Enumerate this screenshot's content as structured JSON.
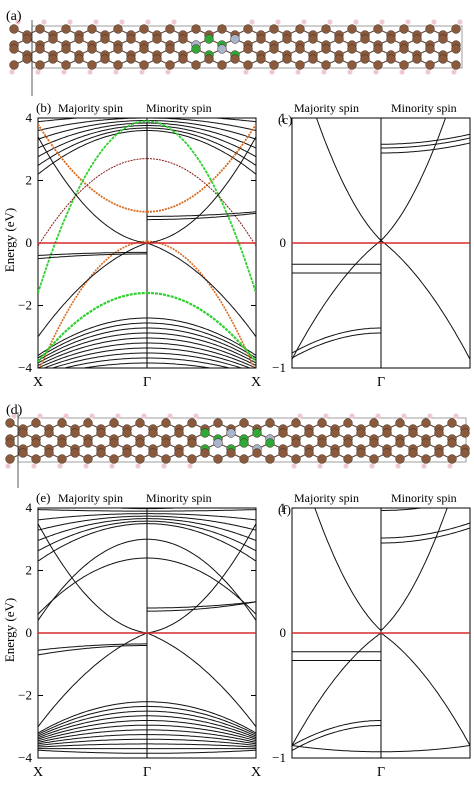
{
  "figure": {
    "panels": {
      "a": {
        "label": "(a)"
      },
      "b": {
        "label": "(b)",
        "majority": "Majority spin",
        "minority": "Minority spin"
      },
      "c": {
        "label": "(c)",
        "majority": "Majority spin",
        "minority": "Minority spin"
      },
      "d": {
        "label": "(d)"
      },
      "e": {
        "label": "(e)",
        "majority": "Majority spin",
        "minority": "Minority spin"
      },
      "f": {
        "label": "(f)",
        "majority": "Majority spin",
        "minority": "Minority spin"
      }
    },
    "y_axis_label": "Energy (eV)",
    "colors": {
      "fermi_line": "#d42b2b",
      "band": "#111111",
      "orange_band": "#d86a1e",
      "green_band": "#2fd02f",
      "carbon": "#8b5a3c",
      "hydrogen": "#f0c9cf",
      "boron_nitrogen_blue": "#aab4cc",
      "boron_green": "#2fa838"
    }
  },
  "chart_data": [
    {
      "panel": "b",
      "type": "line",
      "xlabel_ticks": [
        "X",
        "Γ",
        "X"
      ],
      "ylabel": "Energy (eV)",
      "ylim": [
        -4,
        4
      ],
      "yticks": [
        -4,
        -2,
        0,
        2,
        4
      ],
      "fermi_level": 0,
      "series": [
        {
          "spin": "majority",
          "description": "electron-like bands above 0, hole-like bands below, highlighted orange and green projections",
          "values": "qualitative"
        },
        {
          "spin": "minority",
          "description": "bands mirrored on right side",
          "values": "qualitative"
        }
      ]
    },
    {
      "panel": "c",
      "type": "line",
      "xlabel_ticks": [
        "Γ"
      ],
      "ylim": [
        -1,
        1
      ],
      "yticks": [
        -1,
        0,
        1
      ],
      "fermi_level": 0
    },
    {
      "panel": "e",
      "type": "line",
      "xlabel_ticks": [
        "X",
        "Γ",
        "X"
      ],
      "ylabel": "Energy (eV)",
      "ylim": [
        -4,
        4
      ],
      "yticks": [
        -4,
        -2,
        0,
        2,
        4
      ],
      "fermi_level": 0
    },
    {
      "panel": "f",
      "type": "line",
      "xlabel_ticks": [
        "Γ"
      ],
      "ylim": [
        -1,
        1
      ],
      "yticks": [
        -1,
        0,
        1
      ],
      "fermi_level": 0
    }
  ]
}
